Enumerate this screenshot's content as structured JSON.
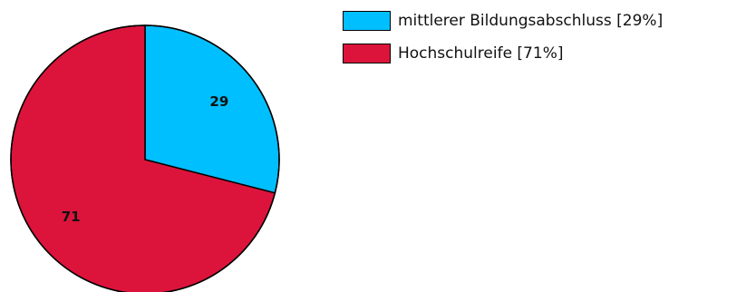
{
  "chart_data": {
    "type": "pie",
    "slices": [
      {
        "name": "mittlerer Bildungsabschluss [29%]",
        "value": 29,
        "label": "29",
        "color": "#00bfff"
      },
      {
        "name": "Hochschulreife [71%]",
        "value": 71,
        "label": "71",
        "color": "#dc143c"
      }
    ],
    "start_angle": "top, clockwise",
    "legend_position": "top-right",
    "title": ""
  }
}
